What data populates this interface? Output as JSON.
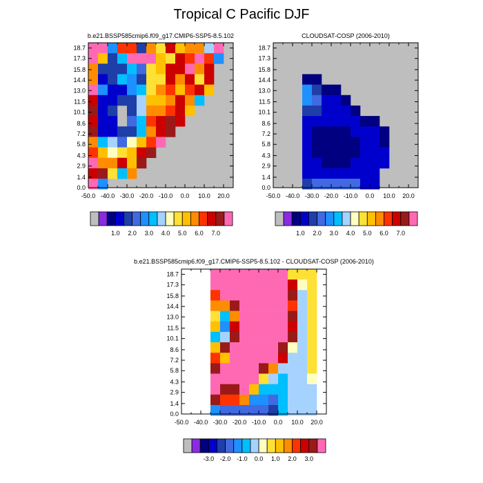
{
  "title": "Tropical C Pacific DJF",
  "colors": {
    "missing": "#bebebe",
    "abs_palette": [
      "#bebebe",
      "#8a2be2",
      "#000080",
      "#0000cd",
      "#1e3ea8",
      "#4169e1",
      "#1e90ff",
      "#00bfff",
      "#a6d2ff",
      "#ffffc0",
      "#ffe135",
      "#ffc000",
      "#ff8c00",
      "#ff3300",
      "#cc0000",
      "#9a1a1a",
      "#ff69b4"
    ],
    "diff_palette": [
      "#bebebe",
      "#8a2be2",
      "#000080",
      "#0000cd",
      "#1e3ea8",
      "#4169e1",
      "#1e90ff",
      "#00bfff",
      "#a6d2ff",
      "#ffffc0",
      "#ffe135",
      "#ffc000",
      "#ff8c00",
      "#ff3300",
      "#cc0000",
      "#9a1a1a",
      "#ff69b4"
    ]
  },
  "chart_data": [
    {
      "type": "heatmap",
      "title": "b.e21.BSSP585cmip6.f09_g17.CMIP6-SSP5-8.5.102",
      "x_ticks": [
        "-50.0",
        "-40.0",
        "-30.0",
        "-20.0",
        "-10.0",
        "0.0",
        "10.0",
        "20.0"
      ],
      "y_ticks": [
        "0.0",
        "1.4",
        "2.9",
        "4.3",
        "5.8",
        "7.2",
        "8.6",
        "10.1",
        "11.5",
        "13.0",
        "14.4",
        "15.8",
        "17.3",
        "18.7"
      ],
      "xlim": [
        -50,
        25
      ],
      "ylim": [
        0,
        19.4
      ],
      "colorbar_labels": [
        "1.0",
        "2.0",
        "3.0",
        "4.0",
        "5.0",
        "6.0",
        "7.0"
      ],
      "grid": "coarse cell estimate: 14 columns (-50..20 step 5) x 14 rows (0..19.4 step 1.4); null = missing",
      "values": [
        [
          7.5,
          7.5,
          2.5,
          6.0,
          6.0,
          1.5,
          5.5,
          4.5,
          6.5,
          5.0,
          5.5,
          5.5,
          3.5,
          7.5
        ],
        [
          7.5,
          5.0,
          1.5,
          3.0,
          7.5,
          7.5,
          7.5,
          5.0,
          4.5,
          6.5,
          6.0,
          7.5,
          6.0,
          2.5
        ],
        [
          5.5,
          1.5,
          1.5,
          1.5,
          3.0,
          2.0,
          4.5,
          5.0,
          6.5,
          6.5,
          7.5,
          5.5,
          6.5,
          null
        ],
        [
          5.5,
          1.0,
          1.5,
          3.0,
          2.5,
          1.5,
          4.5,
          4.5,
          6.5,
          5.5,
          6.5,
          4.5,
          6.5,
          null
        ],
        [
          7.5,
          2.5,
          1.0,
          1.0,
          2.5,
          3.0,
          4.5,
          5.5,
          6.0,
          5.0,
          6.0,
          6.5,
          5.0,
          null
        ],
        [
          6.5,
          1.0,
          1.0,
          1.5,
          1.5,
          3.5,
          5.0,
          5.0,
          5.5,
          6.5,
          5.5,
          3.0,
          null,
          null
        ],
        [
          7.0,
          1.0,
          1.5,
          null,
          1.5,
          3.5,
          5.5,
          5.5,
          6.0,
          6.5,
          5.0,
          null,
          null,
          null
        ],
        [
          6.5,
          1.0,
          1.0,
          null,
          2.0,
          3.0,
          6.0,
          6.5,
          7.0,
          6.5,
          null,
          null,
          null,
          null
        ],
        [
          7.0,
          1.0,
          1.0,
          1.5,
          1.5,
          3.0,
          5.5,
          6.5,
          7.0,
          null,
          null,
          null,
          null,
          null
        ],
        [
          5.5,
          3.0,
          3.5,
          2.0,
          4.0,
          5.0,
          6.0,
          7.5,
          null,
          null,
          null,
          null,
          null,
          null
        ],
        [
          6.0,
          5.0,
          4.0,
          4.5,
          5.0,
          6.5,
          7.0,
          null,
          null,
          null,
          null,
          null,
          null,
          null
        ],
        [
          7.5,
          5.5,
          5.5,
          6.5,
          5.0,
          7.0,
          null,
          null,
          null,
          null,
          null,
          null,
          null,
          null
        ],
        [
          6.5,
          7.0,
          4.5,
          3.0,
          5.5,
          null,
          null,
          null,
          null,
          null,
          null,
          null,
          null,
          null
        ],
        [
          7.5,
          2.5,
          null,
          null,
          null,
          null,
          null,
          null,
          null,
          null,
          null,
          null,
          null,
          null
        ]
      ]
    },
    {
      "type": "heatmap",
      "title": "CLOUDSAT-COSP (2006-2010)",
      "x_ticks": [
        "-50.0",
        "-40.0",
        "-30.0",
        "-20.0",
        "-10.0",
        "0.0",
        "10.0",
        "20.0"
      ],
      "y_ticks": [
        "0.0",
        "1.4",
        "2.9",
        "4.3",
        "5.8",
        "7.2",
        "8.6",
        "10.1",
        "11.5",
        "13.0",
        "14.4",
        "15.8",
        "17.3",
        "18.7"
      ],
      "xlim": [
        -50,
        25
      ],
      "ylim": [
        0,
        19.4
      ],
      "colorbar_labels": [
        "1.0",
        "2.0",
        "3.0",
        "4.0",
        "5.0",
        "6.0",
        "7.0"
      ],
      "grid": "coarse cell estimate: 14 columns (-50..20 step 5) x 14 rows (0..19.4 step 1.4); null = missing",
      "values": [
        [
          null,
          null,
          null,
          null,
          null,
          null,
          null,
          null,
          null,
          null,
          null,
          null,
          null,
          null
        ],
        [
          null,
          null,
          null,
          null,
          null,
          null,
          null,
          null,
          null,
          null,
          null,
          null,
          null,
          null
        ],
        [
          null,
          null,
          null,
          null,
          null,
          null,
          null,
          null,
          null,
          null,
          null,
          null,
          null,
          null
        ],
        [
          null,
          null,
          null,
          0.5,
          0.5,
          null,
          null,
          null,
          null,
          null,
          null,
          null,
          null,
          null
        ],
        [
          null,
          null,
          null,
          2.5,
          1.5,
          0.5,
          0.5,
          null,
          null,
          null,
          null,
          null,
          null,
          null
        ],
        [
          null,
          null,
          null,
          2.5,
          2.0,
          1.0,
          1.0,
          0.5,
          null,
          null,
          null,
          null,
          null,
          null
        ],
        [
          null,
          null,
          null,
          1.5,
          1.5,
          1.0,
          1.0,
          1.0,
          0.5,
          null,
          null,
          null,
          null,
          null
        ],
        [
          null,
          null,
          null,
          1.0,
          1.0,
          1.0,
          1.0,
          1.0,
          1.0,
          0.5,
          0.5,
          null,
          null,
          null
        ],
        [
          null,
          null,
          null,
          1.0,
          0.5,
          0.5,
          0.5,
          0.5,
          1.0,
          1.0,
          1.0,
          0.5,
          null,
          null
        ],
        [
          null,
          null,
          null,
          1.0,
          0.5,
          0.5,
          0.5,
          0.5,
          0.5,
          1.0,
          1.0,
          0.5,
          null,
          null
        ],
        [
          null,
          null,
          null,
          1.0,
          0.5,
          0.5,
          0.5,
          0.5,
          0.5,
          1.0,
          1.0,
          1.0,
          null,
          null
        ],
        [
          null,
          null,
          null,
          1.0,
          1.0,
          0.5,
          0.5,
          0.5,
          1.0,
          1.0,
          1.0,
          1.0,
          null,
          null
        ],
        [
          null,
          null,
          null,
          1.0,
          1.0,
          1.0,
          1.0,
          1.0,
          1.0,
          1.0,
          1.0,
          null,
          null,
          null
        ],
        [
          null,
          null,
          null,
          1.5,
          2.0,
          2.0,
          2.0,
          2.0,
          2.0,
          1.0,
          1.0,
          null,
          null,
          null
        ]
      ]
    },
    {
      "type": "heatmap",
      "title": "b.e21.BSSP585cmip6.f09_g17.CMIP6-SSP5-8.5.102 - CLOUDSAT-COSP (2006-2010)",
      "x_ticks": [
        "-50.0",
        "-40.0",
        "-30.0",
        "-20.0",
        "-10.0",
        "0.0",
        "10.0",
        "20.0"
      ],
      "y_ticks": [
        "0.0",
        "1.4",
        "2.9",
        "4.3",
        "5.8",
        "7.2",
        "8.6",
        "10.1",
        "11.5",
        "13.0",
        "14.4",
        "15.8",
        "17.3",
        "18.7"
      ],
      "xlim": [
        -50,
        25
      ],
      "ylim": [
        0,
        19.4
      ],
      "colorbar_labels": [
        "-3.0",
        "-2.0",
        "-1.0",
        "0.0",
        "1.0",
        "2.0",
        "3.0"
      ],
      "grid": "coarse cell estimate: 14 columns (-50..20 step 5) x 14 rows (0..19.4 step 1.4); null = missing",
      "values": [
        [
          null,
          null,
          null,
          4.0,
          4.0,
          4.0,
          4.0,
          4.0,
          4.0,
          4.0,
          4.0,
          0.5,
          0.5,
          0.5
        ],
        [
          null,
          null,
          null,
          4.0,
          4.0,
          4.0,
          4.0,
          4.0,
          4.0,
          4.0,
          4.0,
          2.5,
          0.0,
          0.5
        ],
        [
          null,
          null,
          null,
          2.0,
          4.0,
          4.0,
          4.0,
          4.0,
          4.0,
          4.0,
          4.0,
          3.0,
          -0.5,
          0.5
        ],
        [
          null,
          null,
          null,
          1.5,
          1.5,
          3.0,
          4.0,
          4.0,
          4.0,
          4.0,
          4.0,
          2.0,
          -0.5,
          0.5
        ],
        [
          null,
          null,
          null,
          0.5,
          -1.0,
          1.5,
          3.5,
          4.0,
          4.0,
          4.0,
          4.0,
          3.0,
          -0.5,
          0.5
        ],
        [
          null,
          null,
          null,
          1.0,
          -1.5,
          2.5,
          4.0,
          4.0,
          4.0,
          4.0,
          4.0,
          2.5,
          -0.5,
          0.5
        ],
        [
          null,
          null,
          null,
          -1.0,
          -0.5,
          3.0,
          4.0,
          4.0,
          4.0,
          4.0,
          4.0,
          3.0,
          -0.5,
          0.5
        ],
        [
          null,
          null,
          null,
          1.0,
          3.0,
          4.0,
          4.0,
          4.0,
          4.0,
          4.0,
          3.0,
          0.0,
          -0.5,
          0.5
        ],
        [
          null,
          null,
          null,
          2.0,
          1.0,
          4.0,
          4.0,
          4.0,
          4.0,
          3.5,
          2.5,
          -0.5,
          -0.5,
          0.5
        ],
        [
          null,
          null,
          null,
          3.0,
          4.0,
          4.0,
          4.0,
          4.0,
          3.0,
          1.5,
          -0.5,
          -0.5,
          -0.5,
          0.5
        ],
        [
          null,
          null,
          null,
          4.0,
          4.0,
          4.0,
          4.0,
          3.5,
          0.5,
          -0.5,
          -1.0,
          -0.5,
          -0.5,
          0.0
        ],
        [
          null,
          null,
          null,
          4.0,
          3.0,
          3.0,
          3.5,
          1.0,
          -1.0,
          -1.0,
          -1.0,
          -0.5,
          -0.5,
          -0.5
        ],
        [
          null,
          null,
          null,
          3.0,
          2.0,
          2.0,
          1.5,
          -1.5,
          -1.5,
          -2.0,
          -1.0,
          -0.5,
          -0.5,
          -0.5
        ],
        [
          null,
          null,
          null,
          -1.5,
          -2.0,
          -2.0,
          -2.0,
          -2.0,
          -2.0,
          -2.5,
          -1.0,
          -0.5,
          -0.5,
          -0.5
        ]
      ]
    }
  ]
}
